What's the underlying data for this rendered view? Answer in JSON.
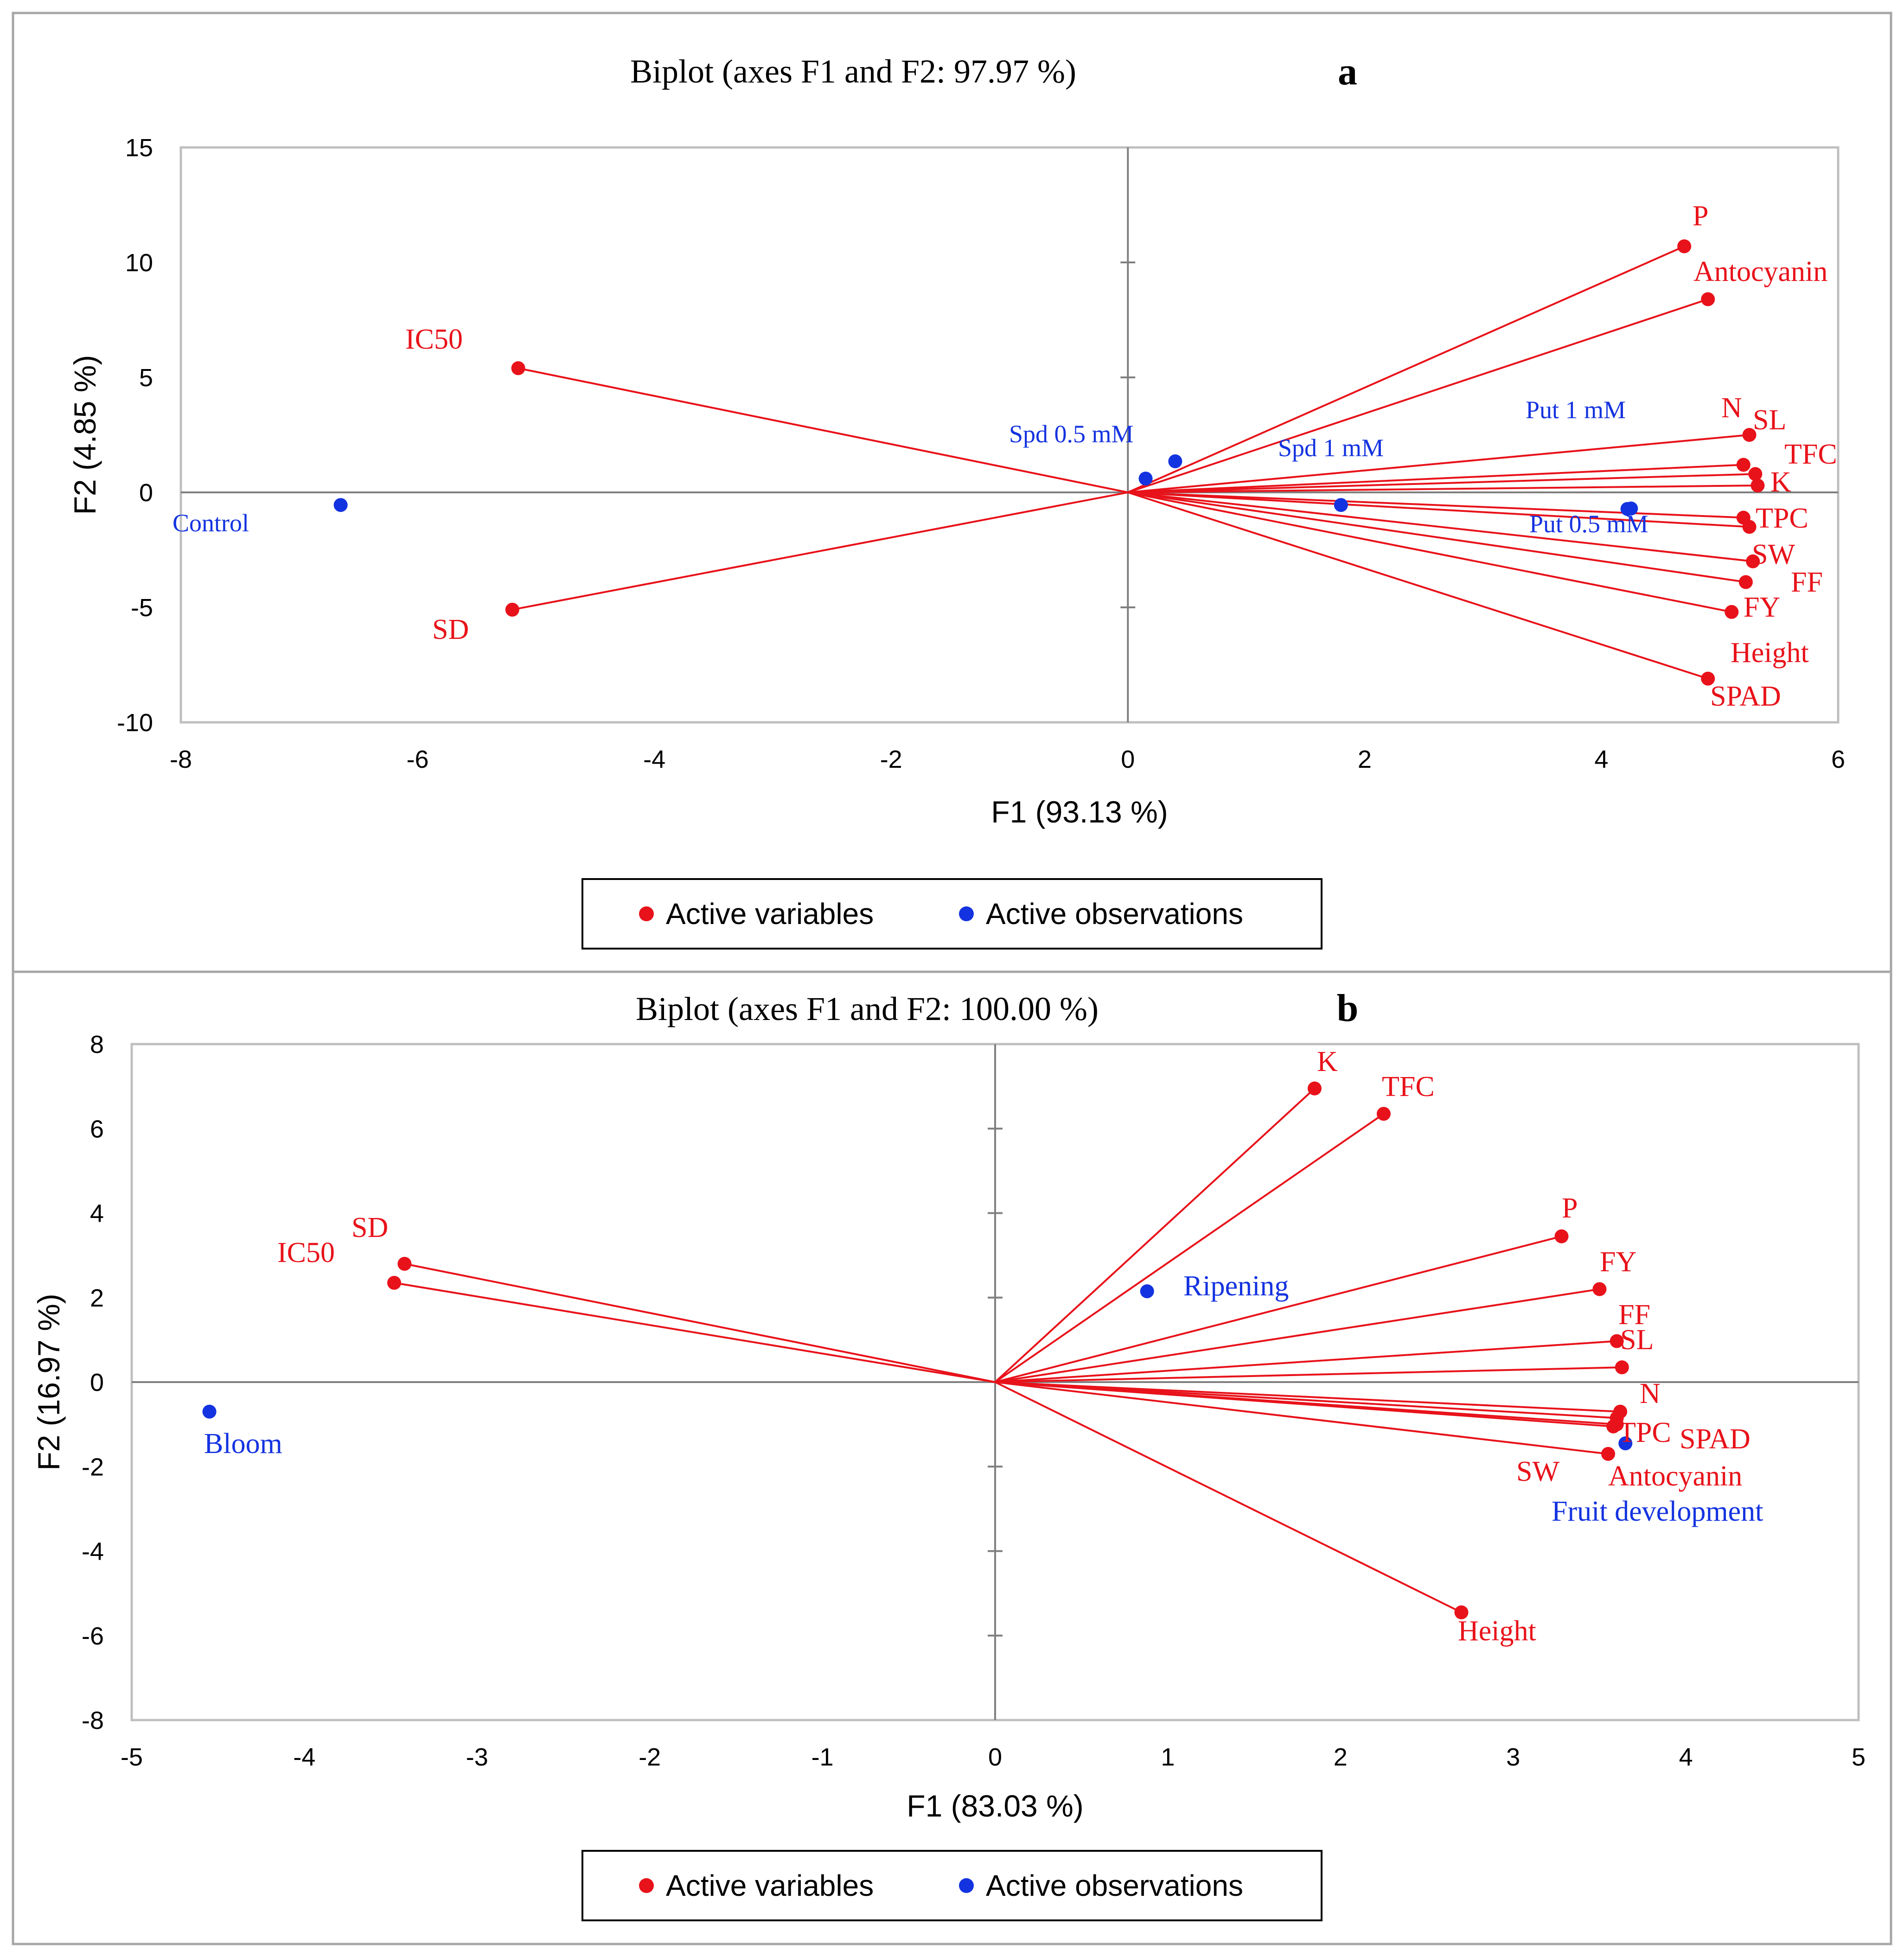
{
  "colors": {
    "variable": "#e8121a",
    "observation": "#1433e0",
    "axis": "#7f7f7f",
    "frame": "#a6a6a6",
    "text": "#000000"
  },
  "chart_data": [
    {
      "type": "scatter",
      "subtype": "biplot",
      "title": "Biplot (axes F1 and F2: 97.97 %)",
      "panel_label": "a",
      "xlabel": "F1 (93.13 %)",
      "ylabel": "F2 (4.85 %)",
      "xlim": [
        -8,
        6
      ],
      "ylim": [
        -10,
        15
      ],
      "xticks": [
        -8,
        -6,
        -4,
        -2,
        0,
        2,
        4,
        6
      ],
      "yticks": [
        -10,
        -5,
        0,
        5,
        10,
        15
      ],
      "grid": false,
      "legend": [
        "Active variables",
        "Active observations"
      ],
      "legend_position": "bottom",
      "variables": [
        {
          "name": "P",
          "x": 4.7,
          "y": 10.7
        },
        {
          "name": "Antocyanin",
          "x": 4.9,
          "y": 8.4
        },
        {
          "name": "N",
          "x": 5.25,
          "y": 2.5
        },
        {
          "name": "SL",
          "x": 5.2,
          "y": 1.2
        },
        {
          "name": "TFC",
          "x": 5.3,
          "y": 0.8
        },
        {
          "name": "K",
          "x": 5.32,
          "y": 0.3
        },
        {
          "name": "TPC",
          "x": 5.2,
          "y": -1.1
        },
        {
          "name": "SW",
          "x": 5.25,
          "y": -1.5
        },
        {
          "name": "FF",
          "x": 5.28,
          "y": -3.0
        },
        {
          "name": "FY",
          "x": 5.22,
          "y": -3.9
        },
        {
          "name": "Height",
          "x": 5.1,
          "y": -5.2
        },
        {
          "name": "SPAD",
          "x": 4.9,
          "y": -8.1
        },
        {
          "name": "IC50",
          "x": -5.15,
          "y": 5.4
        },
        {
          "name": "SD",
          "x": -5.2,
          "y": -5.1
        }
      ],
      "observations": [
        {
          "name": "Control",
          "x": -6.65,
          "y": -0.55
        },
        {
          "name": "Spd 0.5 mM",
          "x": 0.15,
          "y": 0.6
        },
        {
          "name": "Spd 0.5 mM (2)",
          "label": "",
          "x": 0.4,
          "y": 1.35
        },
        {
          "name": "Spd 1 mM",
          "x": 1.8,
          "y": -0.55
        },
        {
          "name": "Put 1 mM",
          "x": 4.25,
          "y": -0.7
        },
        {
          "name": "Put 0.5 mM",
          "x": 4.22,
          "y": -0.72
        }
      ]
    },
    {
      "type": "scatter",
      "subtype": "biplot",
      "title": "Biplot (axes F1 and F2: 100.00 %)",
      "panel_label": "b",
      "xlabel": "F1 (83.03 %)",
      "ylabel": "F2 (16.97 %)",
      "xlim": [
        -5,
        5
      ],
      "ylim": [
        -8,
        8
      ],
      "xticks": [
        -5,
        -4,
        -3,
        -2,
        -1,
        0,
        1,
        2,
        3,
        4,
        5
      ],
      "yticks": [
        -8,
        -6,
        -4,
        -2,
        0,
        2,
        4,
        6,
        8
      ],
      "grid": false,
      "legend": [
        "Active variables",
        "Active observations"
      ],
      "legend_position": "bottom",
      "variables": [
        {
          "name": "K",
          "x": 1.85,
          "y": 6.95
        },
        {
          "name": "TFC",
          "x": 2.25,
          "y": 6.35
        },
        {
          "name": "P",
          "x": 3.28,
          "y": 3.45
        },
        {
          "name": "FY",
          "x": 3.5,
          "y": 2.2
        },
        {
          "name": "FF",
          "x": 3.6,
          "y": 0.97
        },
        {
          "name": "SL",
          "x": 3.63,
          "y": 0.35
        },
        {
          "name": "N",
          "x": 3.62,
          "y": -0.7
        },
        {
          "name": "TPC",
          "x": 3.6,
          "y": -0.85
        },
        {
          "name": "SPAD",
          "x": 3.58,
          "y": -1.05
        },
        {
          "name": "SW",
          "x": 3.55,
          "y": -1.7
        },
        {
          "name": "Antocyanin",
          "x": 3.6,
          "y": -1.0
        },
        {
          "name": "Height",
          "x": 2.7,
          "y": -5.45
        },
        {
          "name": "SD",
          "x": -3.42,
          "y": 2.8
        },
        {
          "name": "IC50",
          "x": -3.48,
          "y": 2.35
        }
      ],
      "observations": [
        {
          "name": "Bloom",
          "x": -4.55,
          "y": -0.7
        },
        {
          "name": "Ripening",
          "x": 0.88,
          "y": 2.15
        },
        {
          "name": "Fruit development",
          "x": 3.65,
          "y": -1.45
        }
      ]
    }
  ]
}
